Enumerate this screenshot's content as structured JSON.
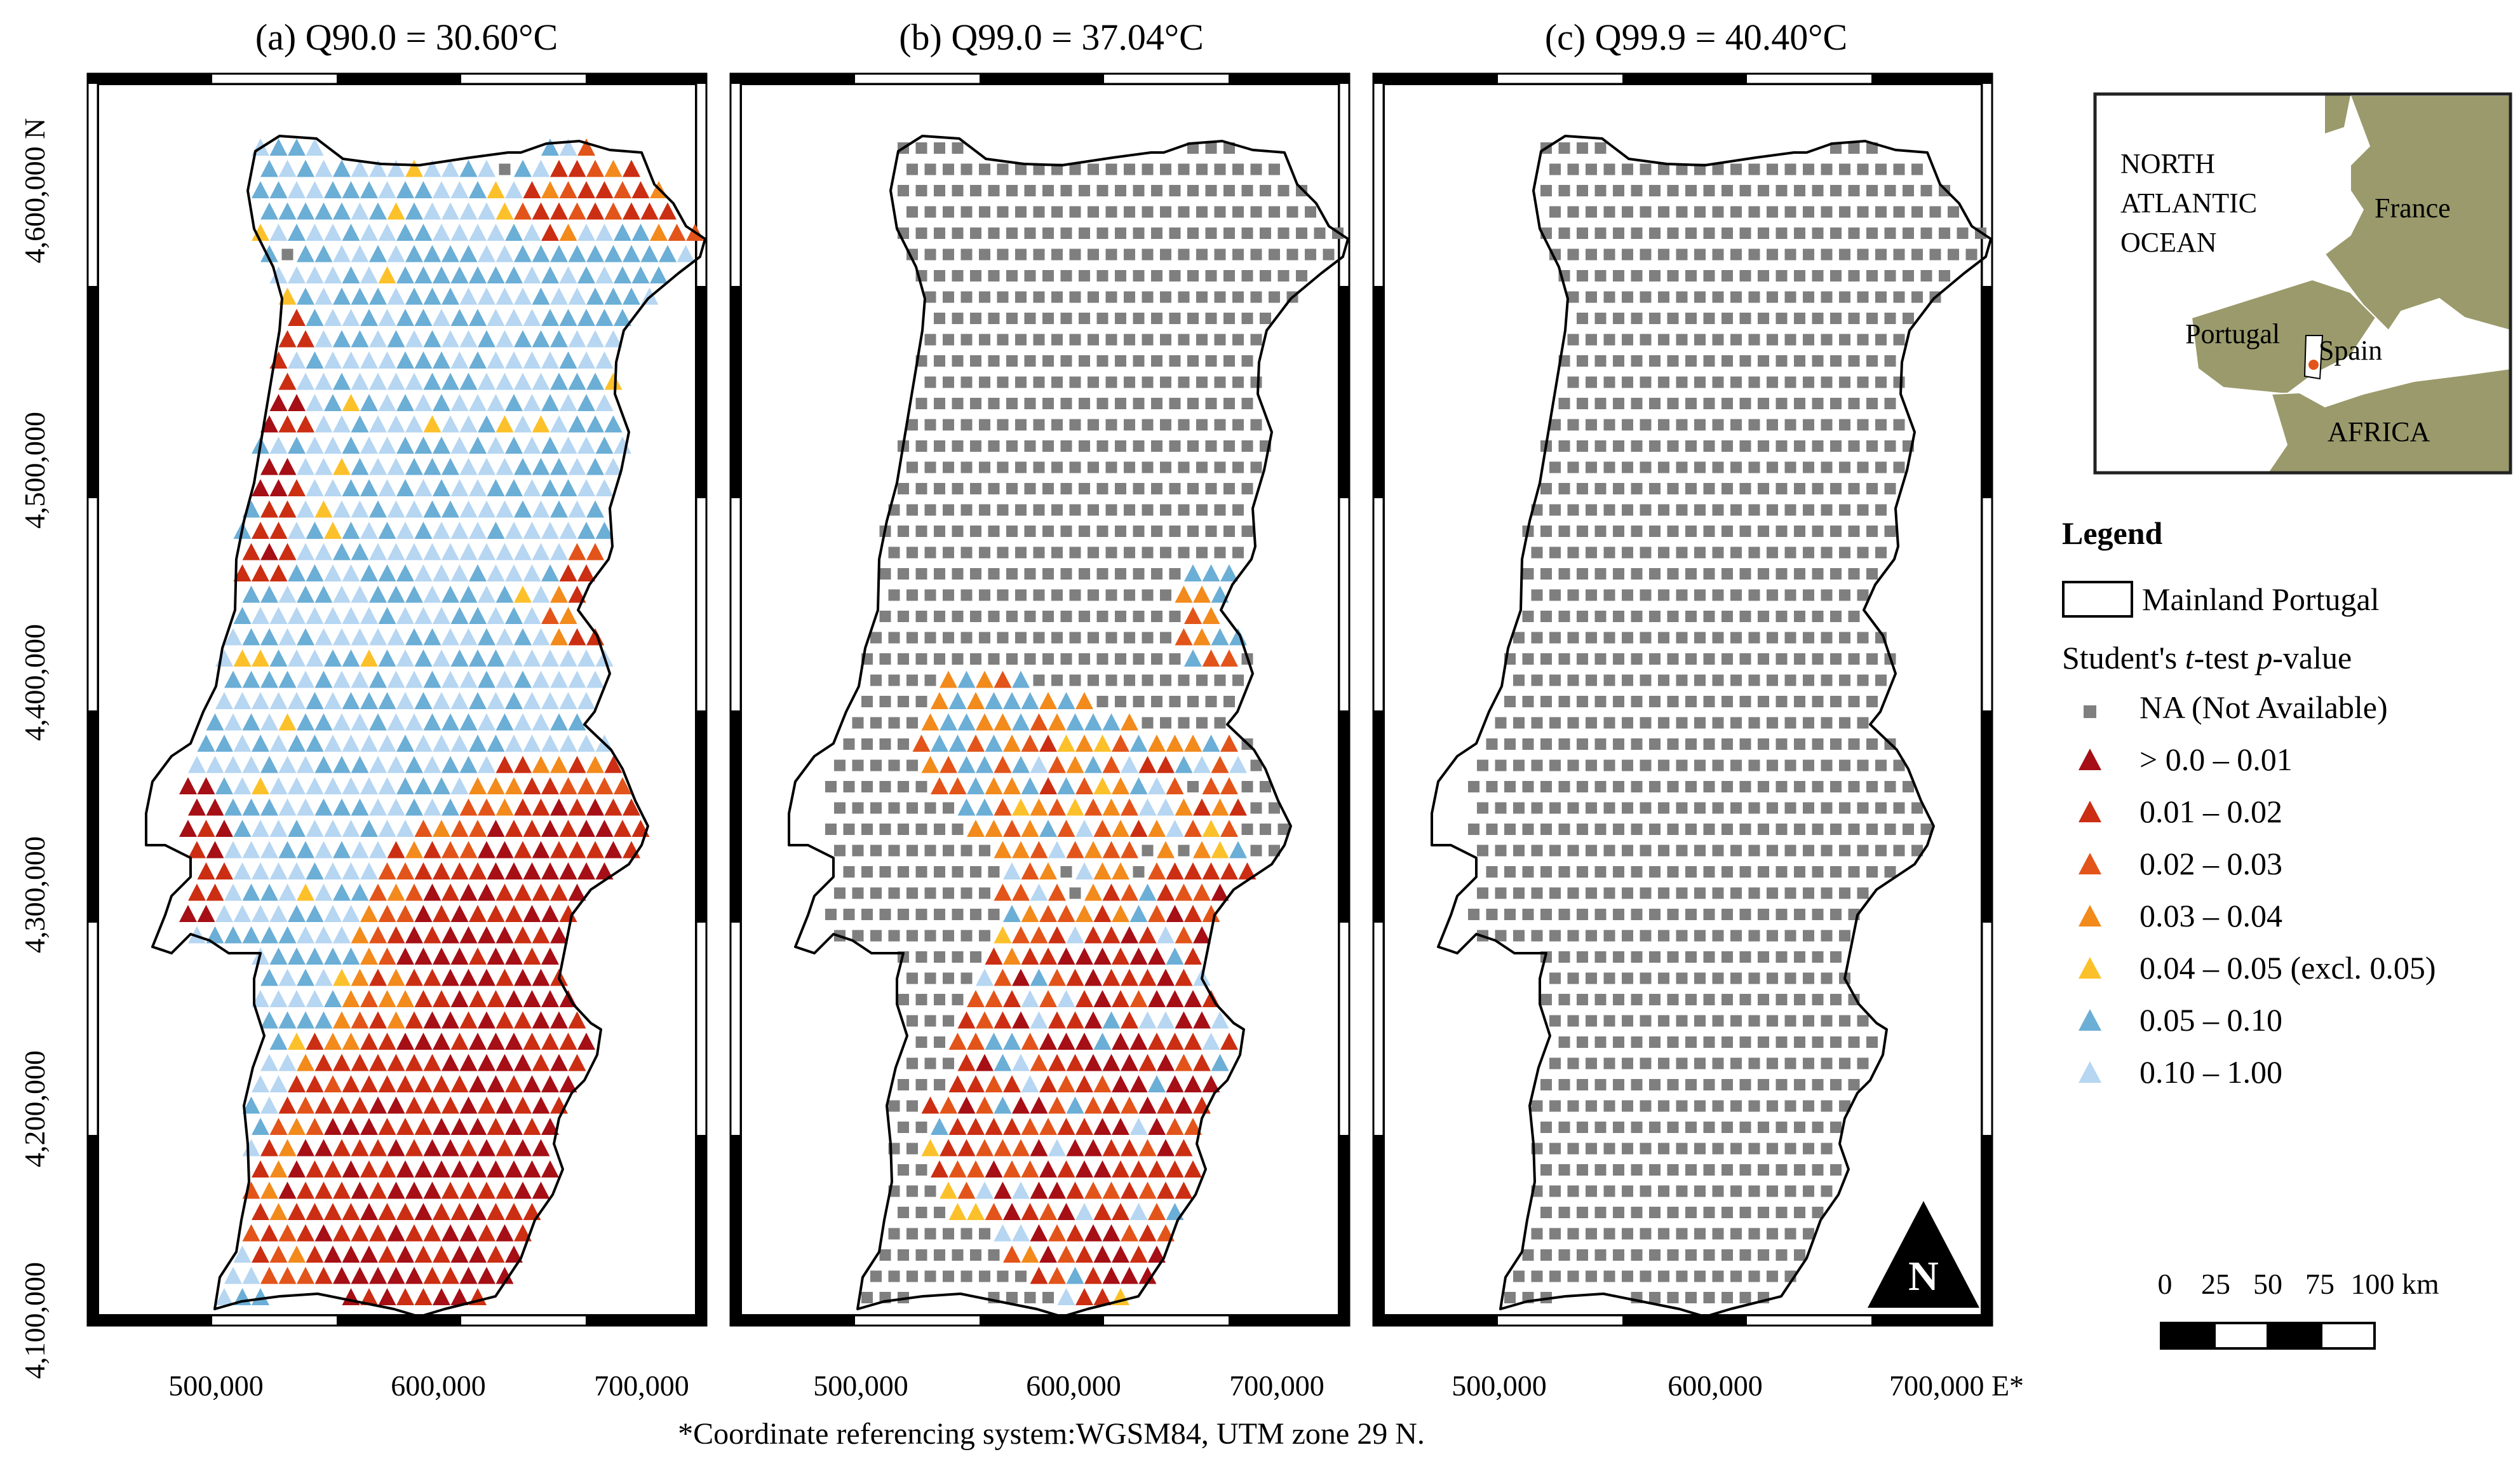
{
  "panels": [
    {
      "title": "(a) Q90.0 = 30.60°C",
      "mode": "mixed"
    },
    {
      "title": "(b) Q99.0 = 37.04°C",
      "mode": "partial"
    },
    {
      "title": "(c) Q99.9 = 40.40°C",
      "mode": "na"
    }
  ],
  "y_axis": {
    "ticks": [
      "4,100,000",
      "4,200,000",
      "4,300,000",
      "4,400,000",
      "4,500,000",
      "4,600,000 N"
    ]
  },
  "x_axis": {
    "ticks_a": [
      "500,000",
      "600,000",
      "700,000"
    ],
    "ticks_b": [
      "500,000",
      "600,000",
      "700,000"
    ],
    "ticks_c": [
      "500,000",
      "600,000",
      "700,000 E*"
    ]
  },
  "footnote": "*Coordinate referencing system:WGSM84, UTM zone 29 N.",
  "inset": {
    "labels": [
      "NORTH",
      "ATLANTIC",
      "OCEAN",
      "France",
      "Portugal",
      "Spain",
      "AFRICA"
    ],
    "land_color": "#9a9a6c",
    "sea_color": "#ffffff"
  },
  "legend": {
    "title": "Legend",
    "boundary_label": "Mainland Portugal",
    "pvalue_prefix": "Student's ",
    "pvalue_t": "t",
    "pvalue_mid": "-test ",
    "pvalue_p": "p",
    "pvalue_suffix": "-value",
    "items": [
      {
        "label": "NA (Not Available)",
        "color": "#7f7f7f",
        "symbol": "square"
      },
      {
        "label": "> 0.0 – 0.01",
        "color": "#a50f15",
        "symbol": "triangle"
      },
      {
        "label": "0.01 – 0.02",
        "color": "#cb2e12",
        "symbol": "triangle"
      },
      {
        "label": "0.02 – 0.03",
        "color": "#e2541a",
        "symbol": "triangle"
      },
      {
        "label": "0.03 – 0.04",
        "color": "#f28a1c",
        "symbol": "triangle"
      },
      {
        "label": "0.04 – 0.05 (excl. 0.05)",
        "color": "#fcc12a",
        "symbol": "triangle"
      },
      {
        "label": "0.05 – 0.10",
        "color": "#6baed6",
        "symbol": "triangle"
      },
      {
        "label": "0.10 – 1.00",
        "color": "#b6d6f2",
        "symbol": "triangle"
      }
    ]
  },
  "north_arrow": "N",
  "scale_bar": {
    "labels": [
      "0",
      "25",
      "50",
      "75",
      "100 km"
    ]
  }
}
